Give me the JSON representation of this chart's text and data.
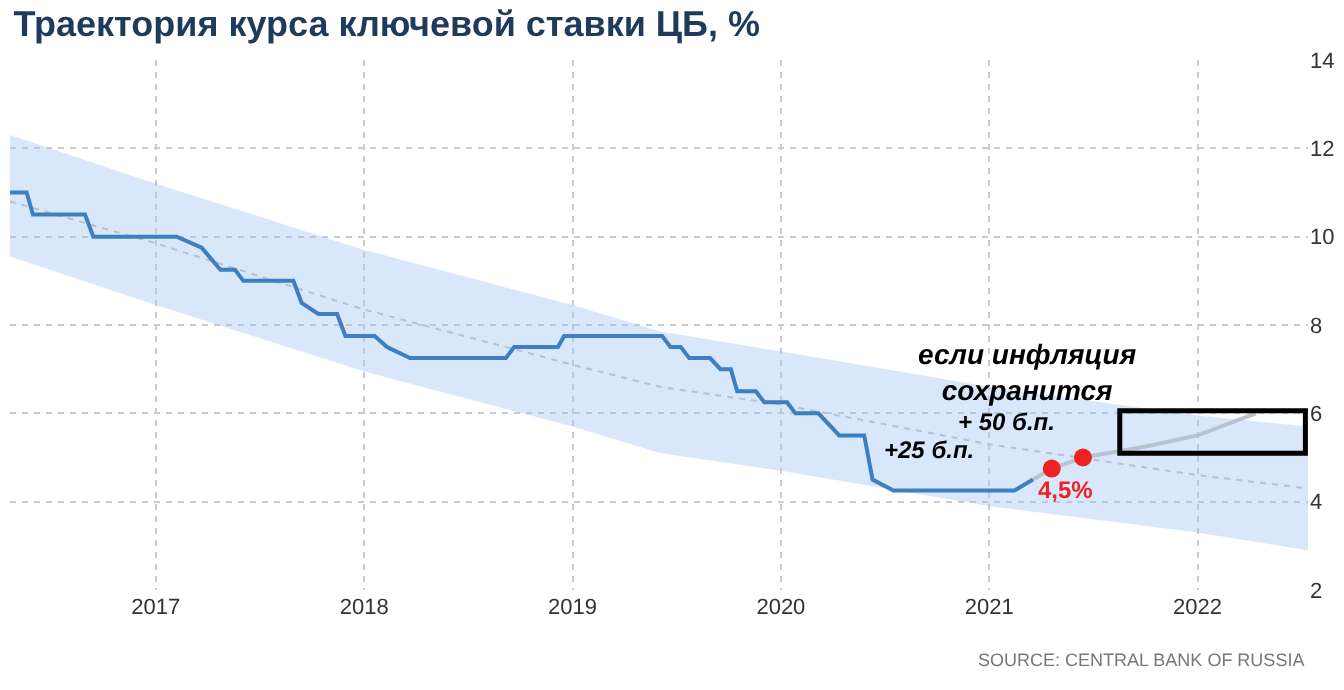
{
  "chart_data": {
    "type": "line",
    "title": "Траектория курса ключевой ставки ЦБ, %",
    "xlim": [
      2016.3,
      2022.53
    ],
    "xticks": [
      2017,
      2018,
      2019,
      2020,
      2021,
      2022
    ],
    "ylim": [
      2,
      14
    ],
    "yticks": [
      2,
      4,
      6,
      8,
      10,
      12,
      14
    ],
    "grid": true,
    "series": [
      {
        "color": "#b9bfcc",
        "line_style": "dotted",
        "x": [
          2016.3,
          2017,
          2018,
          2019,
          2019.42,
          2020,
          2021,
          2022,
          2022.53
        ],
        "values": [
          10.8,
          9.85,
          8.35,
          7.1,
          6.6,
          6.2,
          5.3,
          4.6,
          4.3
        ],
        "lower": [
          9.55,
          8.45,
          6.95,
          5.7,
          5.1,
          4.7,
          3.9,
          3.3,
          2.9
        ],
        "upper": [
          12.3,
          11.2,
          9.7,
          8.45,
          7.85,
          7.4,
          6.6,
          5.95,
          5.7
        ]
      },
      {
        "color": "#3d7fc1",
        "line_style": "solid",
        "x": [
          2016.3,
          2016.38,
          2016.41,
          2016.66,
          2016.7,
          2017.1,
          2017.22,
          2017.31,
          2017.38,
          2017.42,
          2017.66,
          2017.7,
          2017.78,
          2017.87,
          2017.91,
          2018.05,
          2018.11,
          2018.22,
          2018.68,
          2018.72,
          2018.93,
          2018.96,
          2019.43,
          2019.47,
          2019.52,
          2019.56,
          2019.66,
          2019.71,
          2019.76,
          2019.79,
          2019.88,
          2019.92,
          2020.03,
          2020.07,
          2020.18,
          2020.28,
          2020.4,
          2020.44,
          2020.54,
          2021.12,
          2021.21
        ],
        "values": [
          11,
          11,
          10.5,
          10.5,
          10,
          10,
          9.75,
          9.25,
          9.25,
          9,
          9,
          8.5,
          8.25,
          8.25,
          7.75,
          7.75,
          7.5,
          7.25,
          7.25,
          7.5,
          7.5,
          7.75,
          7.75,
          7.5,
          7.5,
          7.25,
          7.25,
          7,
          7,
          6.5,
          6.5,
          6.25,
          6.25,
          6,
          6,
          5.5,
          5.5,
          4.5,
          4.25,
          4.25,
          4.5
        ]
      },
      {
        "color": "#b8c3cf",
        "line_style": "solid",
        "x": [
          2021.21,
          2021.3,
          2021.45,
          2021.75,
          2022.0,
          2022.28
        ],
        "values": [
          4.5,
          4.75,
          5.0,
          5.25,
          5.5,
          6.0
        ]
      },
      {
        "type": "scatter",
        "color": "#ee2222",
        "x": [
          2021.3,
          2021.45
        ],
        "values": [
          4.75,
          5.0
        ]
      }
    ],
    "annotations": [
      "+25 б.п.",
      "+ 50 б.п.",
      "4,5%",
      "если инфляция\nсохранится",
      "SOURCE: CENTRAL BANK OF RUSSIA"
    ]
  }
}
